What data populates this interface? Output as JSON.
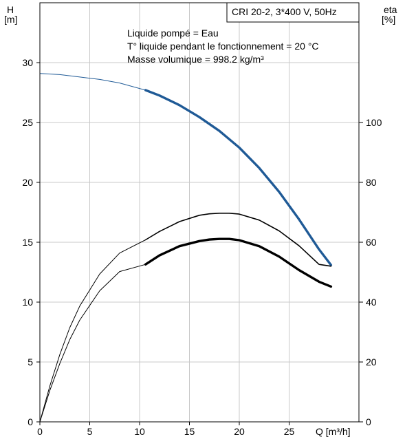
{
  "chart_data": {
    "type": "line",
    "title": "CRI 20-2, 3*400 V, 50Hz",
    "annotations": [
      "Liquide pompé = Eau",
      "T° liquide pendant le fonctionnement = 20 °C",
      "Masse volumique = 998.2 kg/m³"
    ],
    "xlabel": "Q [m³/h]",
    "ylabel_left": {
      "name": "H",
      "unit": "[m]"
    },
    "ylabel_right": {
      "name": "eta",
      "unit": "[%]"
    },
    "xlim": [
      0,
      32
    ],
    "ylim_left": [
      0,
      35
    ],
    "ylim_right": [
      0,
      140
    ],
    "x_ticks": [
      0,
      5,
      10,
      15,
      20,
      25
    ],
    "y_left_ticks": [
      0,
      5,
      10,
      15,
      20,
      25,
      30
    ],
    "y_right_ticks": [
      0,
      20,
      40,
      60,
      80,
      100
    ],
    "grid": true,
    "colors": {
      "head": "#1f5a96",
      "efficiency": "#000000",
      "grid": "#c8c8c8"
    },
    "series": [
      {
        "axis": "left",
        "color": "#1f5a96",
        "x": [
          0,
          2,
          4,
          6,
          8,
          10.6,
          12,
          14,
          16,
          18,
          20,
          22,
          24,
          26,
          28,
          29.2
        ],
        "y": [
          29.1,
          29.0,
          28.8,
          28.6,
          28.3,
          27.7,
          27.25,
          26.45,
          25.45,
          24.3,
          22.9,
          21.2,
          19.2,
          16.9,
          14.4,
          13.1
        ],
        "operating_range": [
          10.6,
          29.2
        ]
      },
      {
        "axis": "right",
        "color": "#000000",
        "x": [
          0,
          1,
          2,
          3,
          4,
          6,
          8,
          10.6,
          12,
          14,
          16,
          17,
          18,
          19,
          20,
          22,
          24,
          26,
          28,
          29.2
        ],
        "y": [
          0,
          12,
          22.5,
          31.5,
          38.7,
          49.4,
          56.4,
          60.8,
          63.6,
          66.9,
          69.0,
          69.5,
          69.7,
          69.7,
          69.4,
          67.4,
          63.8,
          58.8,
          52.6,
          52.0
        ],
        "operating_range": [
          10.6,
          29.2
        ]
      },
      {
        "axis": "right",
        "color": "#000000",
        "x": [
          0,
          1,
          2,
          3,
          4,
          6,
          8,
          10.6,
          12,
          14,
          16,
          17,
          18,
          19,
          20,
          22,
          24,
          26,
          28,
          29.2
        ],
        "y": [
          0,
          10.5,
          19.5,
          27.5,
          34.0,
          43.8,
          50.2,
          52.6,
          55.6,
          58.7,
          60.4,
          60.9,
          61.1,
          61.1,
          60.7,
          58.7,
          55.2,
          50.7,
          46.8,
          45.2
        ],
        "operating_range": [
          10.6,
          29.2
        ]
      }
    ]
  }
}
